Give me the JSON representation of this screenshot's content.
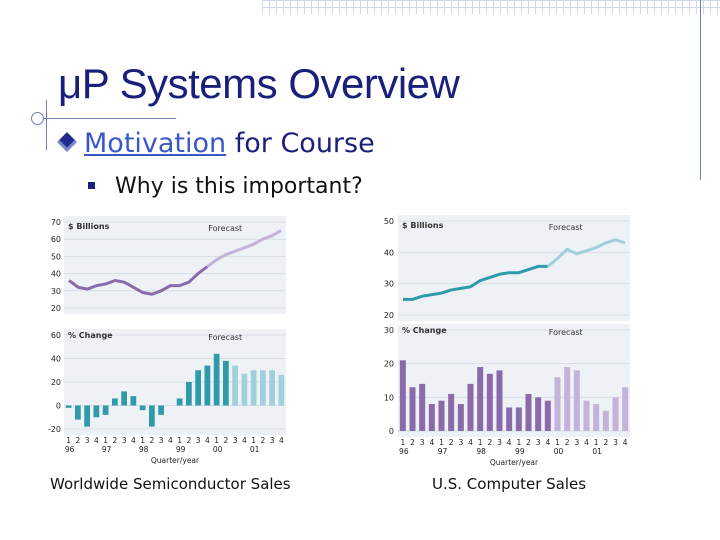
{
  "slide": {
    "title": "μP Systems Overview",
    "bullet1_link": "Motivation",
    "bullet1_rest": " for Course",
    "bullet2": "Why is this important?",
    "caption_left": "Worldwide Semiconductor Sales",
    "caption_right": "U.S. Computer Sales"
  },
  "colors": {
    "title": "#1a1f7a",
    "past_purple": "#8a6aa8",
    "forecast_purple": "#c4b3d8",
    "past_blue": "#2f9aaa",
    "forecast_blue": "#9fd0dc"
  },
  "chart_data": [
    {
      "type": "line",
      "panel": "Worldwide Semiconductor Sales - level",
      "ylabel": "$ Billions",
      "annotation": "Forecast",
      "ylim": [
        20,
        70
      ],
      "yticks": [
        "70",
        "60",
        "50",
        "40",
        "30",
        "20"
      ],
      "x": [
        "96Q1",
        "96Q2",
        "96Q3",
        "96Q4",
        "97Q1",
        "97Q2",
        "97Q3",
        "97Q4",
        "98Q1",
        "98Q2",
        "98Q3",
        "98Q4",
        "99Q1",
        "99Q2",
        "99Q3",
        "99Q4",
        "00Q1",
        "00Q2",
        "00Q3",
        "00Q4",
        "01Q1",
        "01Q2",
        "01Q3",
        "01Q4"
      ],
      "values": [
        36,
        32,
        31,
        33,
        34,
        36,
        35,
        32,
        29,
        28,
        30,
        33,
        33,
        35,
        40,
        44,
        48,
        51,
        53,
        55,
        57,
        60,
        62,
        65
      ],
      "forecast_start_index": 16,
      "line_color": "past_purple",
      "forecast_color": "forecast_purple"
    },
    {
      "type": "bar",
      "panel": "Worldwide Semiconductor Sales - % change",
      "ylabel": "% Change",
      "annotation": "Forecast",
      "ylim": [
        -20,
        60
      ],
      "yticks": [
        "60",
        "40",
        "20",
        "0",
        "-20"
      ],
      "quarter_labels": [
        "1",
        "2",
        "3",
        "4",
        "1",
        "2",
        "3",
        "4",
        "1",
        "2",
        "3",
        "4",
        "1",
        "2",
        "3",
        "4",
        "1",
        "2",
        "3",
        "4",
        "1",
        "2",
        "3",
        "4"
      ],
      "year_labels": [
        "96",
        "97",
        "98",
        "99",
        "00",
        "01"
      ],
      "xlabel": "Quarter/year",
      "values": [
        -2,
        -12,
        -18,
        -10,
        -8,
        6,
        12,
        8,
        -4,
        -18,
        -8,
        0,
        6,
        20,
        30,
        34,
        44,
        38,
        34,
        27,
        30,
        30,
        30,
        26
      ],
      "forecast_start_index": 18,
      "bar_color": "past_blue",
      "forecast_color": "forecast_blue"
    },
    {
      "type": "line",
      "panel": "U.S. Computer Sales - level",
      "ylabel": "$ Billions",
      "annotation": "Forecast",
      "ylim": [
        20,
        50
      ],
      "yticks": [
        "50",
        "40",
        "30",
        "20"
      ],
      "x": [
        "96Q1",
        "96Q2",
        "96Q3",
        "96Q4",
        "97Q1",
        "97Q2",
        "97Q3",
        "97Q4",
        "98Q1",
        "98Q2",
        "98Q3",
        "98Q4",
        "99Q1",
        "99Q2",
        "99Q3",
        "99Q4",
        "00Q1",
        "00Q2",
        "00Q3",
        "00Q4",
        "01Q1",
        "01Q2",
        "01Q3",
        "01Q4"
      ],
      "values": [
        25,
        25,
        26,
        26.5,
        27,
        28,
        28.5,
        29,
        31,
        32,
        33,
        33.5,
        33.5,
        34.5,
        35.5,
        35.5,
        38,
        41,
        39.5,
        40.5,
        41.5,
        43,
        44,
        43
      ],
      "forecast_start_index": 16,
      "line_color": "past_blue",
      "forecast_color": "forecast_blue"
    },
    {
      "type": "bar",
      "panel": "U.S. Computer Sales - % change",
      "ylabel": "% Change",
      "annotation": "Forecast",
      "ylim": [
        0,
        30
      ],
      "yticks": [
        "30",
        "20",
        "10",
        "0"
      ],
      "quarter_labels": [
        "1",
        "2",
        "3",
        "4",
        "1",
        "2",
        "3",
        "4",
        "1",
        "2",
        "3",
        "4",
        "1",
        "2",
        "3",
        "4",
        "1",
        "2",
        "3",
        "4",
        "1",
        "2",
        "3",
        "4"
      ],
      "year_labels": [
        "96",
        "97",
        "98",
        "99",
        "00",
        "01"
      ],
      "xlabel": "Quarter/year",
      "values": [
        21,
        13,
        14,
        8,
        9,
        11,
        8,
        14,
        19,
        17,
        18,
        7,
        7,
        11,
        10,
        9,
        16,
        19,
        18,
        9,
        8,
        6,
        10,
        13
      ],
      "forecast_start_index": 16,
      "bar_color": "past_purple",
      "forecast_color": "forecast_purple"
    }
  ]
}
